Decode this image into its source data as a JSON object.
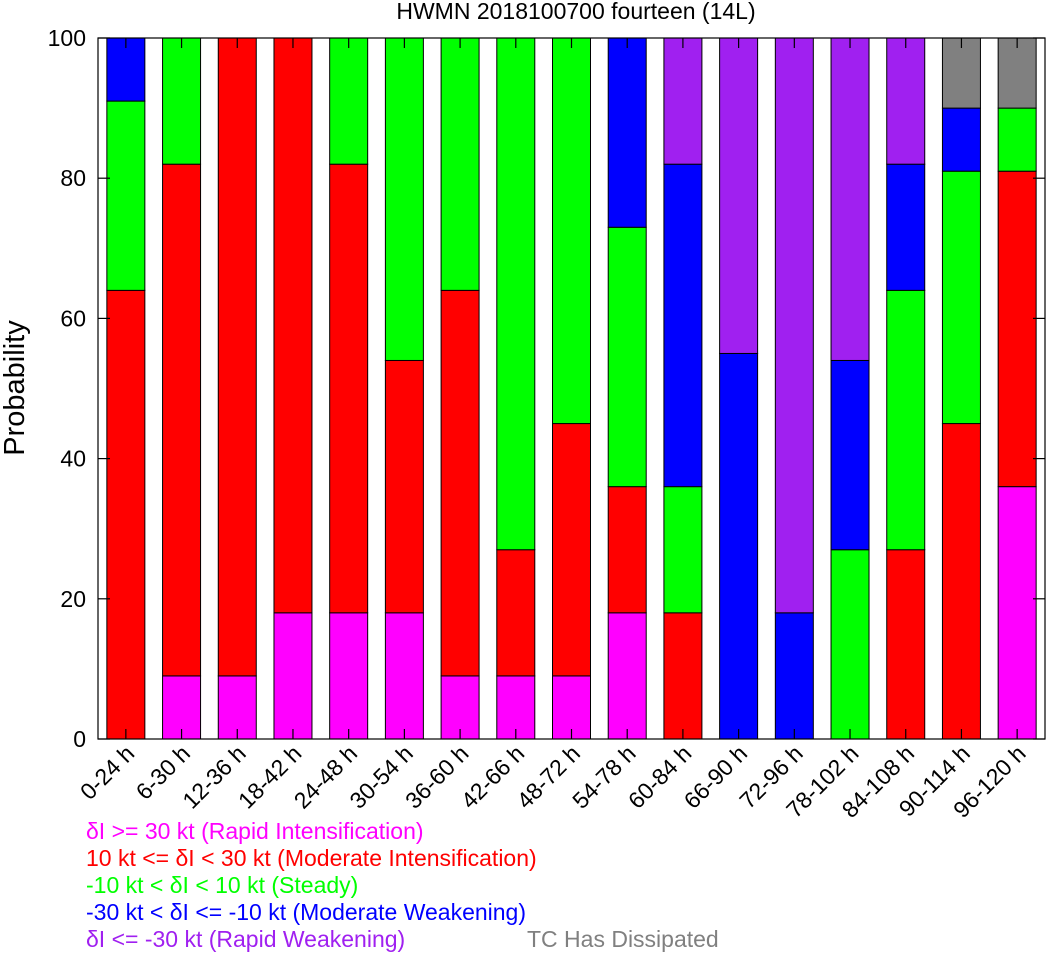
{
  "chart_data": {
    "type": "bar",
    "stacked": true,
    "title": "HWMN 2018100700 fourteen (14L)",
    "xlabel": "",
    "ylabel": "Probability",
    "ylim": [
      0,
      100
    ],
    "yticks": [
      "0",
      "20",
      "40",
      "60",
      "80",
      "100"
    ],
    "grid": false,
    "legend_position": "bottom-left",
    "categories": [
      "0-24 h",
      "6-30 h",
      "12-36 h",
      "18-42 h",
      "24-48 h",
      "30-54 h",
      "36-60 h",
      "42-66 h",
      "48-72 h",
      "54-78 h",
      "60-84 h",
      "66-90 h",
      "72-96 h",
      "78-102 h",
      "84-108 h",
      "90-114 h",
      "96-120 h"
    ],
    "series": [
      {
        "name": "δI >= 30 kt (Rapid Intensification)",
        "color": "#ff00ff",
        "values": [
          0,
          9,
          9,
          18,
          18,
          18,
          9,
          9,
          9,
          18,
          0,
          0,
          0,
          0,
          0,
          0,
          36
        ]
      },
      {
        "name": "10 kt <= δI < 30 kt (Moderate Intensification)",
        "color": "#ff0000",
        "values": [
          64,
          73,
          91,
          82,
          64,
          36,
          55,
          18,
          36,
          18,
          18,
          0,
          0,
          0,
          27,
          45,
          45
        ]
      },
      {
        "name": "-10 kt < δI < 10 kt (Steady)",
        "color": "#00ff00",
        "values": [
          27,
          18,
          0,
          0,
          18,
          46,
          36,
          73,
          55,
          37,
          18,
          0,
          0,
          27,
          37,
          36,
          9
        ]
      },
      {
        "name": "-30 kt < δI <= -10 kt (Moderate Weakening)",
        "color": "#0000ff",
        "values": [
          9,
          0,
          0,
          0,
          0,
          0,
          0,
          0,
          0,
          27,
          46,
          55,
          18,
          27,
          18,
          9,
          0
        ]
      },
      {
        "name": "δI <= -30 kt (Rapid Weakening)",
        "color": "#a020f0",
        "values": [
          0,
          0,
          0,
          0,
          0,
          0,
          0,
          0,
          0,
          0,
          18,
          45,
          82,
          46,
          18,
          0,
          0
        ]
      },
      {
        "name": "TC Has Dissipated",
        "color": "#808080",
        "values": [
          0,
          0,
          0,
          0,
          0,
          0,
          0,
          0,
          0,
          0,
          0,
          0,
          0,
          0,
          0,
          10,
          10
        ]
      }
    ]
  }
}
